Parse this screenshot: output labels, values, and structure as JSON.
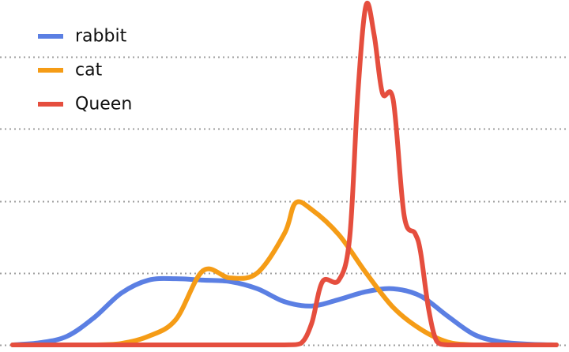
{
  "chart_data": {
    "type": "line",
    "title": "",
    "xlabel": "",
    "ylabel": "",
    "grid": {
      "y": true,
      "style": "dotted",
      "color": "#9e9e9e"
    },
    "legend_position": "top-left",
    "xlim": [
      0,
      100
    ],
    "ylim": [
      0,
      4.7
    ],
    "gridlines": [
      0,
      1,
      2,
      3,
      4
    ],
    "series": [
      {
        "name": "rabbit",
        "color": "#5b7fe3",
        "points": [
          [
            0,
            0
          ],
          [
            5,
            0.03
          ],
          [
            10,
            0.12
          ],
          [
            15,
            0.38
          ],
          [
            20,
            0.72
          ],
          [
            25,
            0.9
          ],
          [
            30,
            0.92
          ],
          [
            35,
            0.9
          ],
          [
            40,
            0.88
          ],
          [
            45,
            0.78
          ],
          [
            50,
            0.6
          ],
          [
            55,
            0.54
          ],
          [
            60,
            0.63
          ],
          [
            65,
            0.74
          ],
          [
            70,
            0.78
          ],
          [
            75,
            0.68
          ],
          [
            80,
            0.4
          ],
          [
            85,
            0.14
          ],
          [
            90,
            0.04
          ],
          [
            95,
            0.01
          ],
          [
            100,
            0
          ]
        ]
      },
      {
        "name": "cat",
        "color": "#f59c16",
        "points": [
          [
            0,
            0
          ],
          [
            5,
            0
          ],
          [
            10,
            0
          ],
          [
            15,
            0
          ],
          [
            20,
            0.02
          ],
          [
            25,
            0.12
          ],
          [
            30,
            0.35
          ],
          [
            35,
            1.03
          ],
          [
            40,
            0.93
          ],
          [
            45,
            1.0
          ],
          [
            50,
            1.55
          ],
          [
            52,
            1.97
          ],
          [
            55,
            1.88
          ],
          [
            60,
            1.53
          ],
          [
            65,
            1.0
          ],
          [
            70,
            0.52
          ],
          [
            75,
            0.22
          ],
          [
            80,
            0.04
          ],
          [
            85,
            0
          ],
          [
            90,
            0
          ],
          [
            95,
            0
          ],
          [
            100,
            0
          ]
        ]
      },
      {
        "name": "Queen",
        "color": "#e54e3e",
        "points": [
          [
            0,
            0
          ],
          [
            10,
            0
          ],
          [
            20,
            0
          ],
          [
            30,
            0
          ],
          [
            40,
            0
          ],
          [
            50,
            0
          ],
          [
            53,
            0.02
          ],
          [
            55,
            0.3
          ],
          [
            57,
            0.88
          ],
          [
            60,
            0.9
          ],
          [
            62,
            1.5
          ],
          [
            63.5,
            3.5
          ],
          [
            65,
            4.72
          ],
          [
            66.5,
            4.3
          ],
          [
            68,
            3.5
          ],
          [
            70,
            3.4
          ],
          [
            72,
            1.8
          ],
          [
            74,
            1.55
          ],
          [
            75,
            1.3
          ],
          [
            76.5,
            0.5
          ],
          [
            78,
            0.05
          ],
          [
            80,
            0
          ],
          [
            85,
            0
          ],
          [
            90,
            0
          ],
          [
            100,
            0
          ]
        ]
      }
    ],
    "legend": [
      {
        "label": "rabbit",
        "color": "#5b7fe3"
      },
      {
        "label": "cat",
        "color": "#f59c16"
      },
      {
        "label": "Queen",
        "color": "#e54e3e"
      }
    ]
  }
}
